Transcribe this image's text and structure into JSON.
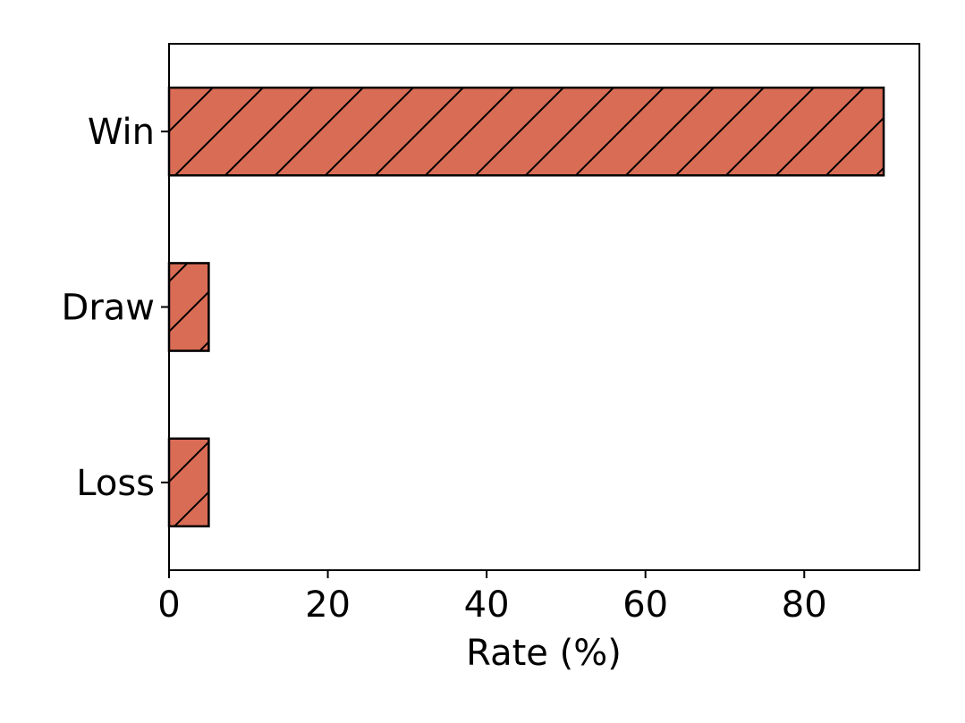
{
  "chart_data": {
    "type": "bar",
    "orientation": "horizontal",
    "categories": [
      "Win",
      "Draw",
      "Loss"
    ],
    "values": [
      90,
      5,
      5
    ],
    "title": "",
    "xlabel": "Rate (%)",
    "ylabel": "",
    "xlim": [
      0,
      94.5
    ],
    "xticks": [
      0,
      20,
      40,
      60,
      80
    ],
    "xtick_labels": [
      "0",
      "20",
      "40",
      "60",
      "80"
    ],
    "grid": false,
    "legend": "none",
    "bar_color": "#d96c55",
    "bar_edge_color": "#000000",
    "hatch": "forward-diagonal"
  }
}
